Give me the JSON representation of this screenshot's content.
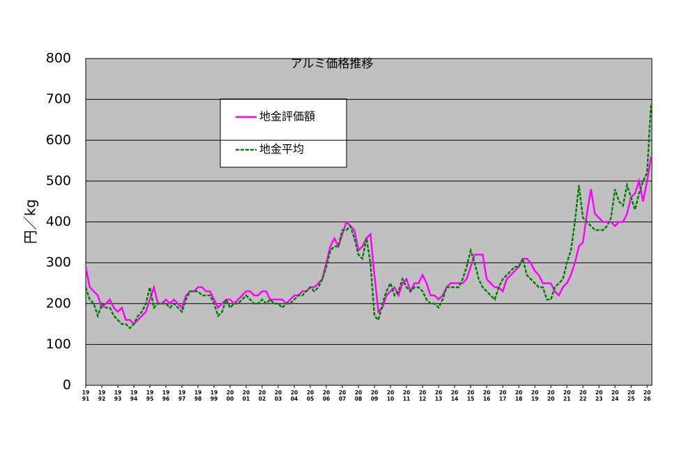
{
  "chart_data": {
    "type": "line",
    "title": "アルミ価格推移",
    "ylabel": "円／kg",
    "x": [
      1991,
      1991.25,
      1991.5,
      1991.75,
      1992,
      1992.25,
      1992.5,
      1992.75,
      1993,
      1993.25,
      1993.5,
      1993.75,
      1994,
      1994.25,
      1994.5,
      1994.75,
      1995,
      1995.25,
      1995.5,
      1995.75,
      1996,
      1996.25,
      1996.5,
      1996.75,
      1997,
      1997.25,
      1997.5,
      1997.75,
      1998,
      1998.25,
      1998.5,
      1998.75,
      1999,
      1999.25,
      1999.5,
      1999.75,
      2000,
      2000.25,
      2000.5,
      2000.75,
      2001,
      2001.25,
      2001.5,
      2001.75,
      2002,
      2002.25,
      2002.5,
      2002.75,
      2003,
      2003.25,
      2003.5,
      2003.75,
      2004,
      2004.25,
      2004.5,
      2004.75,
      2005,
      2005.25,
      2005.5,
      2005.75,
      2006,
      2006.25,
      2006.5,
      2006.75,
      2007,
      2007.25,
      2007.5,
      2007.75,
      2008,
      2008.25,
      2008.5,
      2008.75,
      2009,
      2009.25,
      2009.5,
      2009.75,
      2010,
      2010.25,
      2010.5,
      2010.75,
      2011,
      2011.25,
      2011.5,
      2011.75,
      2012,
      2012.25,
      2012.5,
      2012.75,
      2013,
      2013.25,
      2013.5,
      2013.75,
      2014,
      2014.25,
      2014.5,
      2014.75,
      2015,
      2015.25,
      2015.5,
      2015.75,
      2016,
      2016.25,
      2016.5,
      2016.75,
      2017,
      2017.25,
      2017.5,
      2017.75,
      2018,
      2018.25,
      2018.5,
      2018.75,
      2019,
      2019.25,
      2019.5,
      2019.75,
      2020,
      2020.25,
      2020.5,
      2020.75,
      2021,
      2021.25,
      2021.5,
      2021.75,
      2022,
      2022.25,
      2022.5,
      2022.75,
      2023,
      2023.25,
      2023.5,
      2023.75,
      2024,
      2024.25,
      2024.5,
      2024.75,
      2025,
      2025.25,
      2025.5,
      2025.75,
      2026,
      2026.25
    ],
    "series": [
      {
        "name": "地金評価額",
        "color": "#ff00ff",
        "dash": false,
        "values": [
          290,
          240,
          230,
          220,
          190,
          200,
          210,
          190,
          180,
          190,
          160,
          160,
          150,
          160,
          170,
          180,
          210,
          240,
          200,
          200,
          210,
          200,
          210,
          200,
          190,
          220,
          230,
          230,
          240,
          240,
          230,
          230,
          210,
          190,
          200,
          210,
          210,
          200,
          210,
          220,
          230,
          230,
          220,
          220,
          230,
          230,
          210,
          210,
          210,
          210,
          200,
          210,
          220,
          220,
          230,
          230,
          240,
          240,
          250,
          260,
          300,
          340,
          360,
          340,
          370,
          400,
          390,
          380,
          330,
          340,
          360,
          370,
          270,
          180,
          190,
          220,
          230,
          240,
          220,
          250,
          260,
          230,
          250,
          250,
          270,
          250,
          220,
          220,
          210,
          220,
          240,
          250,
          250,
          250,
          250,
          260,
          290,
          320,
          320,
          320,
          260,
          250,
          240,
          240,
          230,
          260,
          270,
          280,
          290,
          310,
          310,
          300,
          280,
          270,
          250,
          250,
          250,
          230,
          220,
          240,
          250,
          270,
          300,
          340,
          350,
          420,
          480,
          420,
          410,
          400,
          400,
          400,
          390,
          400,
          400,
          420,
          460,
          470,
          500,
          450,
          500,
          560
        ]
      },
      {
        "name": "地金平均",
        "color": "#008000",
        "dash": true,
        "values": [
          240,
          210,
          200,
          170,
          200,
          190,
          190,
          170,
          160,
          150,
          150,
          140,
          150,
          170,
          180,
          200,
          240,
          190,
          200,
          200,
          200,
          190,
          200,
          190,
          180,
          210,
          230,
          230,
          230,
          220,
          220,
          220,
          200,
          170,
          180,
          210,
          190,
          200,
          200,
          210,
          220,
          210,
          200,
          200,
          210,
          200,
          210,
          200,
          200,
          190,
          200,
          200,
          210,
          220,
          220,
          230,
          240,
          230,
          240,
          260,
          290,
          330,
          340,
          340,
          380,
          380,
          390,
          360,
          320,
          310,
          360,
          300,
          170,
          160,
          200,
          230,
          250,
          220,
          230,
          260,
          240,
          230,
          240,
          240,
          230,
          210,
          200,
          200,
          190,
          210,
          240,
          240,
          240,
          240,
          260,
          290,
          330,
          300,
          260,
          240,
          230,
          220,
          210,
          240,
          260,
          270,
          280,
          290,
          290,
          310,
          270,
          260,
          250,
          240,
          240,
          210,
          210,
          240,
          250,
          260,
          300,
          330,
          400,
          490,
          410,
          400,
          390,
          380,
          380,
          380,
          390,
          410,
          480,
          450,
          440,
          490,
          460,
          430,
          470,
          500,
          520,
          690
        ]
      }
    ],
    "xlim": [
      1991,
      2026.3
    ],
    "xticks": [
      {
        "value": 1991,
        "label": "19\n91"
      },
      {
        "value": 1992,
        "label": "19\n92"
      },
      {
        "value": 1993,
        "label": "19\n93"
      },
      {
        "value": 1994,
        "label": "19\n94"
      },
      {
        "value": 1995,
        "label": "19\n95"
      },
      {
        "value": 1996,
        "label": "19\n96"
      },
      {
        "value": 1997,
        "label": "19\n97"
      },
      {
        "value": 1998,
        "label": "19\n98"
      },
      {
        "value": 1999,
        "label": "19\n99"
      },
      {
        "value": 2000,
        "label": "20\n00"
      },
      {
        "value": 2001,
        "label": "20\n01"
      },
      {
        "value": 2002,
        "label": "20\n02"
      },
      {
        "value": 2003,
        "label": "20\n03"
      },
      {
        "value": 2004,
        "label": "20\n04"
      },
      {
        "value": 2005,
        "label": "20\n05"
      },
      {
        "value": 2006,
        "label": "20\n06"
      },
      {
        "value": 2007,
        "label": "20\n07"
      },
      {
        "value": 2008,
        "label": "20\n08"
      },
      {
        "value": 2009,
        "label": "20\n09"
      },
      {
        "value": 2010,
        "label": "20\n10"
      },
      {
        "value": 2011,
        "label": "20\n11"
      },
      {
        "value": 2012,
        "label": "20\n12"
      },
      {
        "value": 2013,
        "label": "20\n13"
      },
      {
        "value": 2014,
        "label": "20\n14"
      },
      {
        "value": 2015,
        "label": "20\n15"
      },
      {
        "value": 2016,
        "label": "20\n16"
      },
      {
        "value": 2017,
        "label": "20\n17"
      },
      {
        "value": 2018,
        "label": "20\n18"
      },
      {
        "value": 2019,
        "label": "20\n19"
      },
      {
        "value": 2020,
        "label": "20\n20"
      },
      {
        "value": 2021,
        "label": "20\n21"
      },
      {
        "value": 2022,
        "label": "20\n22"
      },
      {
        "value": 2023,
        "label": "20\n23"
      },
      {
        "value": 2024,
        "label": "20\n24"
      },
      {
        "value": 2025,
        "label": "20\n25"
      },
      {
        "value": 2026,
        "label": "20\n26"
      }
    ],
    "ylim": [
      0,
      800
    ],
    "yticks": [
      0,
      100,
      200,
      300,
      400,
      500,
      600,
      700,
      800
    ],
    "grid": true
  }
}
